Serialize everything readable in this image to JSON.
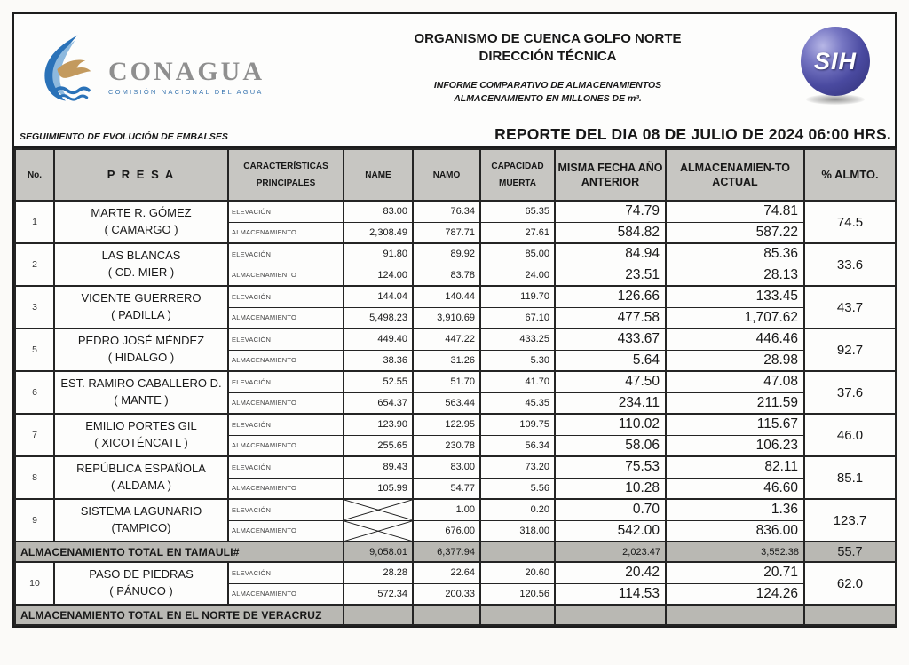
{
  "header": {
    "logo_brand": "CONAGUA",
    "logo_subtitle": "COMISIÓN NACIONAL DEL AGUA",
    "org_line1": "ORGANISMO DE CUENCA GOLFO NORTE",
    "org_line2": "DIRECCIÓN TÉCNICA",
    "report_sub1": "INFORME COMPARATIVO DE ALMACENAMIENTOS",
    "report_sub2": "ALMACENAMIENTO EN MILLONES DE m³.",
    "sih_label": "SIH"
  },
  "band": {
    "left": "SEGUIMIENTO DE EVOLUCIÓN DE EMBALSES",
    "right": "REPORTE DEL DIA 08 DE JULIO DE 2024 06:00 HRS."
  },
  "table": {
    "columns": {
      "no": "No.",
      "presa": "P R E S A",
      "caracteristicas": "CARACTERÍSTICAS\nPRINCIPALES",
      "name": "NAME",
      "namo": "NAMO",
      "muerta": "CAPACIDAD\nMUERTA",
      "prev": "MISMA FECHA AÑO\nANTERIOR",
      "actual": "ALMACENAMIEN-TO\nACTUAL",
      "pct": "% ALMTO."
    },
    "row_labels": {
      "elevation": "ELEVACIÓN",
      "storage": "ALMACENAMIENTO"
    },
    "rows": [
      {
        "type": "presa",
        "no": "1",
        "name": "MARTE R. GÓMEZ",
        "place": "( CAMARGO )",
        "elevation": {
          "name": "83.00",
          "namo": "76.34",
          "muerta": "65.35",
          "prev": "74.79",
          "actual": "74.81"
        },
        "storage": {
          "name": "2,308.49",
          "namo": "787.71",
          "muerta": "27.61",
          "prev": "584.82",
          "actual": "587.22"
        },
        "pct": "74.5"
      },
      {
        "type": "presa",
        "no": "2",
        "name": "LAS BLANCAS",
        "place": "( CD. MIER )",
        "elevation": {
          "name": "91.80",
          "namo": "89.92",
          "muerta": "85.00",
          "prev": "84.94",
          "actual": "85.36"
        },
        "storage": {
          "name": "124.00",
          "namo": "83.78",
          "muerta": "24.00",
          "prev": "23.51",
          "actual": "28.13"
        },
        "pct": "33.6"
      },
      {
        "type": "presa",
        "no": "3",
        "name": "VICENTE GUERRERO",
        "place": "( PADILLA )",
        "elevation": {
          "name": "144.04",
          "namo": "140.44",
          "muerta": "119.70",
          "prev": "126.66",
          "actual": "133.45"
        },
        "storage": {
          "name": "5,498.23",
          "namo": "3,910.69",
          "muerta": "67.10",
          "prev": "477.58",
          "actual": "1,707.62"
        },
        "pct": "43.7"
      },
      {
        "type": "presa",
        "no": "5",
        "name": "PEDRO JOSÉ MÉNDEZ",
        "place": "( HIDALGO )",
        "elevation": {
          "name": "449.40",
          "namo": "447.22",
          "muerta": "433.25",
          "prev": "433.67",
          "actual": "446.46"
        },
        "storage": {
          "name": "38.36",
          "namo": "31.26",
          "muerta": "5.30",
          "prev": "5.64",
          "actual": "28.98"
        },
        "pct": "92.7"
      },
      {
        "type": "presa",
        "no": "6",
        "name": "EST. RAMIRO CABALLERO D.",
        "place": "( MANTE )",
        "elevation": {
          "name": "52.55",
          "namo": "51.70",
          "muerta": "41.70",
          "prev": "47.50",
          "actual": "47.08"
        },
        "storage": {
          "name": "654.37",
          "namo": "563.44",
          "muerta": "45.35",
          "prev": "234.11",
          "actual": "211.59"
        },
        "pct": "37.6"
      },
      {
        "type": "presa",
        "no": "7",
        "name": "EMILIO PORTES GIL",
        "place": "( XICOTÉNCATL )",
        "elevation": {
          "name": "123.90",
          "namo": "122.95",
          "muerta": "109.75",
          "prev": "110.02",
          "actual": "115.67"
        },
        "storage": {
          "name": "255.65",
          "namo": "230.78",
          "muerta": "56.34",
          "prev": "58.06",
          "actual": "106.23"
        },
        "pct": "46.0"
      },
      {
        "type": "presa",
        "no": "8",
        "name": "REPÚBLICA ESPAÑOLA",
        "place": "( ALDAMA )",
        "elevation": {
          "name": "89.43",
          "namo": "83.00",
          "muerta": "73.20",
          "prev": "75.53",
          "actual": "82.11"
        },
        "storage": {
          "name": "105.99",
          "namo": "54.77",
          "muerta": "5.56",
          "prev": "10.28",
          "actual": "46.60"
        },
        "pct": "85.1"
      },
      {
        "type": "presa",
        "no": "9",
        "name": "SISTEMA LAGUNARIO",
        "place": "(TAMPICO)",
        "crossed_name": true,
        "elevation": {
          "name": "",
          "namo": "1.00",
          "muerta": "0.20",
          "prev": "0.70",
          "actual": "1.36"
        },
        "storage": {
          "name": "",
          "namo": "676.00",
          "muerta": "318.00",
          "prev": "542.00",
          "actual": "836.00"
        },
        "pct": "123.7"
      },
      {
        "type": "total",
        "label": "ALMACENAMIENTO TOTAL EN TAMAULI#",
        "name": "9,058.01",
        "namo": "6,377.94",
        "muerta": "",
        "prev": "2,023.47",
        "actual": "3,552.38",
        "pct": "55.7"
      },
      {
        "type": "presa",
        "no": "10",
        "name": "PASO DE PIEDRAS",
        "place": "( PÁNUCO )",
        "elevation": {
          "name": "28.28",
          "namo": "22.64",
          "muerta": "20.60",
          "prev": "20.42",
          "actual": "20.71"
        },
        "storage": {
          "name": "572.34",
          "namo": "200.33",
          "muerta": "120.56",
          "prev": "114.53",
          "actual": "124.26"
        },
        "pct": "62.0"
      },
      {
        "type": "total",
        "label": "ALMACENAMIENTO TOTAL EN EL NORTE DE VERACRUZ",
        "name": "",
        "namo": "",
        "muerta": "",
        "prev": "",
        "actual": "",
        "pct": ""
      }
    ]
  },
  "colors": {
    "header_fill": "#c7c6c2",
    "total_fill": "#b9b8b3",
    "border": "#242424",
    "logo_blue": "#2a72b8",
    "logo_tan": "#c39a5e",
    "sih_sphere": "#4a4aa0"
  }
}
